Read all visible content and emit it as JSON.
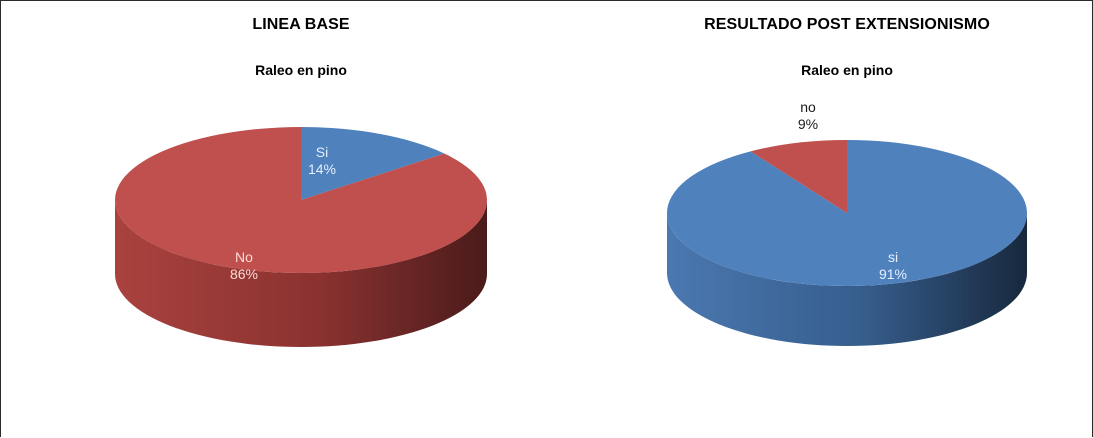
{
  "colors": {
    "red": "#c0504d",
    "red_side_light": "#b24a47",
    "red_side_dark": "#5a2220",
    "blue": "#4f81bd",
    "blue_side_light": "#4a78b0",
    "blue_side_dark": "#1f3550",
    "label_on_red": "#ffd9d6",
    "label_on_blue": "#e6f0ff",
    "label_outside": "#1a1a1a"
  },
  "chart_data": [
    {
      "type": "pie",
      "title": "LINEA BASE",
      "subtitle": "Raleo en pino",
      "slices": [
        {
          "label": "Si",
          "percent_label": "14%",
          "value": 14,
          "color": "#4f81bd"
        },
        {
          "label": "No",
          "percent_label": "86%",
          "value": 86,
          "color": "#c0504d"
        }
      ]
    },
    {
      "type": "pie",
      "title": "RESULTADO POST EXTENSIONISMO",
      "subtitle": "Raleo en pino",
      "slices": [
        {
          "label": "si",
          "percent_label": "91%",
          "value": 91,
          "color": "#4f81bd"
        },
        {
          "label": "no",
          "percent_label": "9%",
          "value": 9,
          "color": "#c0504d"
        }
      ]
    }
  ]
}
